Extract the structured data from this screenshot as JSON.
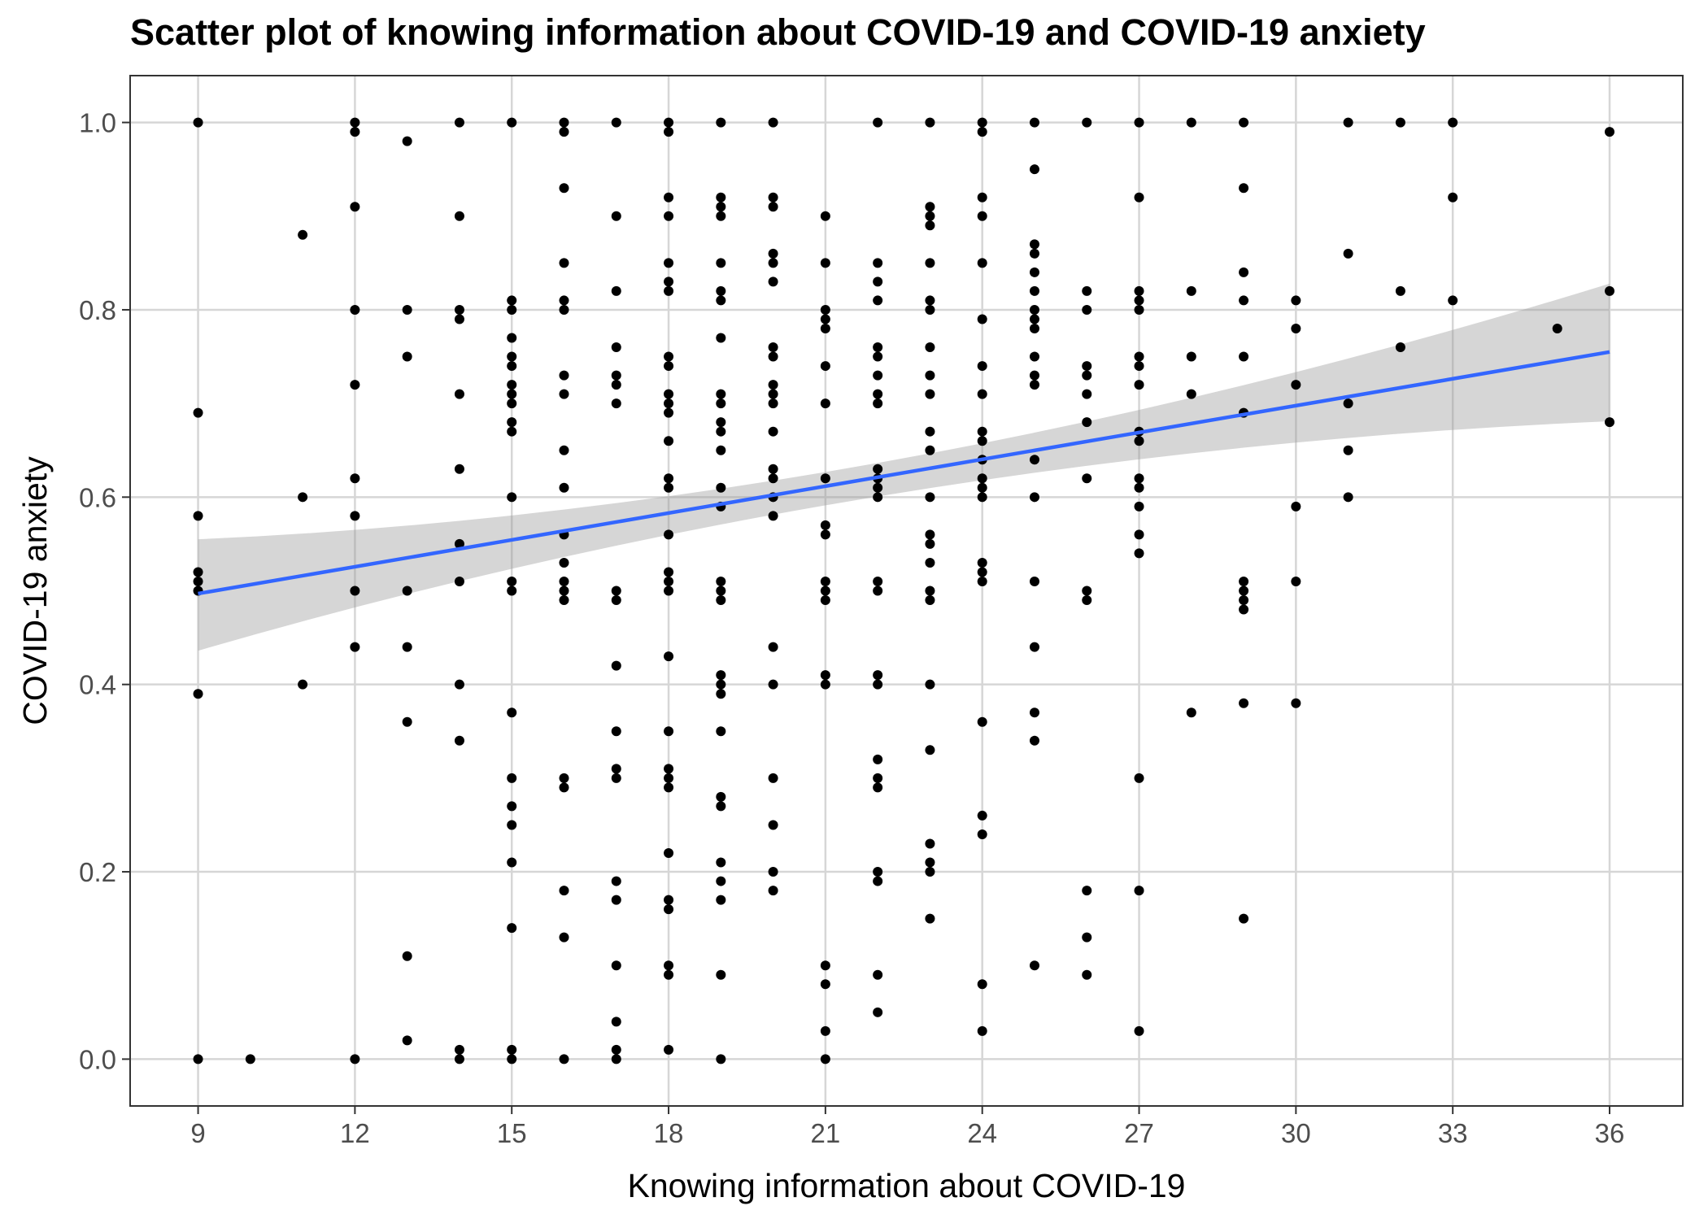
{
  "chart_data": {
    "type": "scatter",
    "title": "Scatter plot of knowing information about COVID-19 and COVID-19 anxiety",
    "xlabel": "Knowing information about COVID-19",
    "ylabel": "COVID-19 anxiety",
    "xlim": [
      7.7,
      37.4
    ],
    "ylim": [
      -0.05,
      1.05
    ],
    "x_ticks": [
      9,
      12,
      15,
      18,
      21,
      24,
      27,
      30,
      33,
      36
    ],
    "y_ticks": [
      0.0,
      0.2,
      0.4,
      0.6,
      0.8,
      1.0
    ],
    "x_tick_labels": [
      "9",
      "12",
      "15",
      "18",
      "21",
      "24",
      "27",
      "30",
      "33",
      "36"
    ],
    "y_tick_labels": [
      "0.0",
      "0.2",
      "0.4",
      "0.6",
      "0.8",
      "1.0"
    ],
    "grid": true,
    "colors": {
      "points": "#000000",
      "fit_line": "#3366ff",
      "ribbon": "#999999",
      "grid": "#d6d6d6",
      "panel_border": "#333333"
    },
    "points": [
      [
        9,
        1.0
      ],
      [
        9,
        0.69
      ],
      [
        9,
        0.58
      ],
      [
        9,
        0.52
      ],
      [
        9,
        0.51
      ],
      [
        9,
        0.5
      ],
      [
        9,
        0.39
      ],
      [
        9,
        0.0
      ],
      [
        10,
        0.0
      ],
      [
        11,
        0.88
      ],
      [
        11,
        0.6
      ],
      [
        11,
        0.4
      ],
      [
        12,
        1.0
      ],
      [
        12,
        0.99
      ],
      [
        12,
        0.91
      ],
      [
        12,
        0.8
      ],
      [
        12,
        0.72
      ],
      [
        12,
        0.62
      ],
      [
        12,
        0.58
      ],
      [
        12,
        0.5
      ],
      [
        12,
        0.44
      ],
      [
        12,
        0.0
      ],
      [
        13,
        0.98
      ],
      [
        13,
        0.8
      ],
      [
        13,
        0.75
      ],
      [
        13,
        0.5
      ],
      [
        13,
        0.44
      ],
      [
        13,
        0.36
      ],
      [
        13,
        0.11
      ],
      [
        13,
        0.02
      ],
      [
        14,
        1.0
      ],
      [
        14,
        0.9
      ],
      [
        14,
        0.8
      ],
      [
        14,
        0.79
      ],
      [
        14,
        0.71
      ],
      [
        14,
        0.63
      ],
      [
        14,
        0.55
      ],
      [
        14,
        0.51
      ],
      [
        14,
        0.4
      ],
      [
        14,
        0.34
      ],
      [
        14,
        0.01
      ],
      [
        14,
        0.0
      ],
      [
        15,
        1.0
      ],
      [
        15,
        0.81
      ],
      [
        15,
        0.8
      ],
      [
        15,
        0.77
      ],
      [
        15,
        0.75
      ],
      [
        15,
        0.74
      ],
      [
        15,
        0.72
      ],
      [
        15,
        0.71
      ],
      [
        15,
        0.7
      ],
      [
        15,
        0.68
      ],
      [
        15,
        0.67
      ],
      [
        15,
        0.6
      ],
      [
        15,
        0.51
      ],
      [
        15,
        0.5
      ],
      [
        15,
        0.37
      ],
      [
        15,
        0.3
      ],
      [
        15,
        0.27
      ],
      [
        15,
        0.25
      ],
      [
        15,
        0.21
      ],
      [
        15,
        0.14
      ],
      [
        15,
        0.01
      ],
      [
        15,
        0.0
      ],
      [
        16,
        1.0
      ],
      [
        16,
        0.99
      ],
      [
        16,
        0.93
      ],
      [
        16,
        0.85
      ],
      [
        16,
        0.81
      ],
      [
        16,
        0.8
      ],
      [
        16,
        0.73
      ],
      [
        16,
        0.71
      ],
      [
        16,
        0.65
      ],
      [
        16,
        0.61
      ],
      [
        16,
        0.56
      ],
      [
        16,
        0.53
      ],
      [
        16,
        0.51
      ],
      [
        16,
        0.5
      ],
      [
        16,
        0.49
      ],
      [
        16,
        0.3
      ],
      [
        16,
        0.29
      ],
      [
        16,
        0.18
      ],
      [
        16,
        0.13
      ],
      [
        16,
        0.0
      ],
      [
        17,
        1.0
      ],
      [
        17,
        0.9
      ],
      [
        17,
        0.82
      ],
      [
        17,
        0.76
      ],
      [
        17,
        0.73
      ],
      [
        17,
        0.72
      ],
      [
        17,
        0.7
      ],
      [
        17,
        0.5
      ],
      [
        17,
        0.49
      ],
      [
        17,
        0.42
      ],
      [
        17,
        0.35
      ],
      [
        17,
        0.31
      ],
      [
        17,
        0.3
      ],
      [
        17,
        0.19
      ],
      [
        17,
        0.17
      ],
      [
        17,
        0.1
      ],
      [
        17,
        0.04
      ],
      [
        17,
        0.01
      ],
      [
        17,
        0.0
      ],
      [
        18,
        1.0
      ],
      [
        18,
        0.99
      ],
      [
        18,
        0.92
      ],
      [
        18,
        0.9
      ],
      [
        18,
        0.85
      ],
      [
        18,
        0.83
      ],
      [
        18,
        0.82
      ],
      [
        18,
        0.75
      ],
      [
        18,
        0.74
      ],
      [
        18,
        0.71
      ],
      [
        18,
        0.7
      ],
      [
        18,
        0.69
      ],
      [
        18,
        0.66
      ],
      [
        18,
        0.62
      ],
      [
        18,
        0.61
      ],
      [
        18,
        0.56
      ],
      [
        18,
        0.52
      ],
      [
        18,
        0.51
      ],
      [
        18,
        0.5
      ],
      [
        18,
        0.43
      ],
      [
        18,
        0.35
      ],
      [
        18,
        0.31
      ],
      [
        18,
        0.3
      ],
      [
        18,
        0.29
      ],
      [
        18,
        0.22
      ],
      [
        18,
        0.17
      ],
      [
        18,
        0.16
      ],
      [
        18,
        0.1
      ],
      [
        18,
        0.09
      ],
      [
        18,
        0.01
      ],
      [
        19,
        1.0
      ],
      [
        19,
        0.92
      ],
      [
        19,
        0.91
      ],
      [
        19,
        0.9
      ],
      [
        19,
        0.85
      ],
      [
        19,
        0.82
      ],
      [
        19,
        0.81
      ],
      [
        19,
        0.77
      ],
      [
        19,
        0.71
      ],
      [
        19,
        0.7
      ],
      [
        19,
        0.68
      ],
      [
        19,
        0.67
      ],
      [
        19,
        0.65
      ],
      [
        19,
        0.61
      ],
      [
        19,
        0.59
      ],
      [
        19,
        0.51
      ],
      [
        19,
        0.5
      ],
      [
        19,
        0.49
      ],
      [
        19,
        0.41
      ],
      [
        19,
        0.4
      ],
      [
        19,
        0.39
      ],
      [
        19,
        0.35
      ],
      [
        19,
        0.28
      ],
      [
        19,
        0.27
      ],
      [
        19,
        0.21
      ],
      [
        19,
        0.19
      ],
      [
        19,
        0.17
      ],
      [
        19,
        0.09
      ],
      [
        19,
        0.0
      ],
      [
        20,
        1.0
      ],
      [
        20,
        0.92
      ],
      [
        20,
        0.91
      ],
      [
        20,
        0.86
      ],
      [
        20,
        0.85
      ],
      [
        20,
        0.83
      ],
      [
        20,
        0.76
      ],
      [
        20,
        0.75
      ],
      [
        20,
        0.72
      ],
      [
        20,
        0.71
      ],
      [
        20,
        0.7
      ],
      [
        20,
        0.67
      ],
      [
        20,
        0.63
      ],
      [
        20,
        0.62
      ],
      [
        20,
        0.6
      ],
      [
        20,
        0.58
      ],
      [
        20,
        0.44
      ],
      [
        20,
        0.4
      ],
      [
        20,
        0.3
      ],
      [
        20,
        0.25
      ],
      [
        20,
        0.2
      ],
      [
        20,
        0.18
      ],
      [
        21,
        0.9
      ],
      [
        21,
        0.85
      ],
      [
        21,
        0.8
      ],
      [
        21,
        0.79
      ],
      [
        21,
        0.78
      ],
      [
        21,
        0.74
      ],
      [
        21,
        0.7
      ],
      [
        21,
        0.62
      ],
      [
        21,
        0.57
      ],
      [
        21,
        0.56
      ],
      [
        21,
        0.51
      ],
      [
        21,
        0.5
      ],
      [
        21,
        0.49
      ],
      [
        21,
        0.41
      ],
      [
        21,
        0.4
      ],
      [
        21,
        0.1
      ],
      [
        21,
        0.08
      ],
      [
        21,
        0.03
      ],
      [
        21,
        0.0
      ],
      [
        22,
        1.0
      ],
      [
        22,
        0.85
      ],
      [
        22,
        0.83
      ],
      [
        22,
        0.81
      ],
      [
        22,
        0.76
      ],
      [
        22,
        0.75
      ],
      [
        22,
        0.73
      ],
      [
        22,
        0.71
      ],
      [
        22,
        0.7
      ],
      [
        22,
        0.63
      ],
      [
        22,
        0.62
      ],
      [
        22,
        0.61
      ],
      [
        22,
        0.6
      ],
      [
        22,
        0.51
      ],
      [
        22,
        0.5
      ],
      [
        22,
        0.41
      ],
      [
        22,
        0.4
      ],
      [
        22,
        0.32
      ],
      [
        22,
        0.3
      ],
      [
        22,
        0.29
      ],
      [
        22,
        0.2
      ],
      [
        22,
        0.19
      ],
      [
        22,
        0.09
      ],
      [
        22,
        0.05
      ],
      [
        23,
        1.0
      ],
      [
        23,
        0.91
      ],
      [
        23,
        0.9
      ],
      [
        23,
        0.89
      ],
      [
        23,
        0.85
      ],
      [
        23,
        0.81
      ],
      [
        23,
        0.8
      ],
      [
        23,
        0.76
      ],
      [
        23,
        0.73
      ],
      [
        23,
        0.71
      ],
      [
        23,
        0.67
      ],
      [
        23,
        0.65
      ],
      [
        23,
        0.6
      ],
      [
        23,
        0.56
      ],
      [
        23,
        0.55
      ],
      [
        23,
        0.53
      ],
      [
        23,
        0.5
      ],
      [
        23,
        0.49
      ],
      [
        23,
        0.4
      ],
      [
        23,
        0.33
      ],
      [
        23,
        0.23
      ],
      [
        23,
        0.21
      ],
      [
        23,
        0.2
      ],
      [
        23,
        0.15
      ],
      [
        24,
        1.0
      ],
      [
        24,
        0.99
      ],
      [
        24,
        0.92
      ],
      [
        24,
        0.9
      ],
      [
        24,
        0.85
      ],
      [
        24,
        0.79
      ],
      [
        24,
        0.74
      ],
      [
        24,
        0.71
      ],
      [
        24,
        0.67
      ],
      [
        24,
        0.66
      ],
      [
        24,
        0.64
      ],
      [
        24,
        0.62
      ],
      [
        24,
        0.61
      ],
      [
        24,
        0.6
      ],
      [
        24,
        0.53
      ],
      [
        24,
        0.52
      ],
      [
        24,
        0.51
      ],
      [
        24,
        0.36
      ],
      [
        24,
        0.26
      ],
      [
        24,
        0.24
      ],
      [
        24,
        0.08
      ],
      [
        24,
        0.03
      ],
      [
        25,
        1.0
      ],
      [
        25,
        0.95
      ],
      [
        25,
        0.87
      ],
      [
        25,
        0.86
      ],
      [
        25,
        0.84
      ],
      [
        25,
        0.82
      ],
      [
        25,
        0.8
      ],
      [
        25,
        0.79
      ],
      [
        25,
        0.78
      ],
      [
        25,
        0.75
      ],
      [
        25,
        0.73
      ],
      [
        25,
        0.72
      ],
      [
        25,
        0.64
      ],
      [
        25,
        0.6
      ],
      [
        25,
        0.51
      ],
      [
        25,
        0.44
      ],
      [
        25,
        0.37
      ],
      [
        25,
        0.34
      ],
      [
        25,
        0.1
      ],
      [
        26,
        1.0
      ],
      [
        26,
        0.82
      ],
      [
        26,
        0.8
      ],
      [
        26,
        0.74
      ],
      [
        26,
        0.73
      ],
      [
        26,
        0.71
      ],
      [
        26,
        0.68
      ],
      [
        26,
        0.62
      ],
      [
        26,
        0.5
      ],
      [
        26,
        0.49
      ],
      [
        26,
        0.18
      ],
      [
        26,
        0.13
      ],
      [
        26,
        0.09
      ],
      [
        27,
        1.0
      ],
      [
        27,
        0.92
      ],
      [
        27,
        0.82
      ],
      [
        27,
        0.81
      ],
      [
        27,
        0.8
      ],
      [
        27,
        0.75
      ],
      [
        27,
        0.74
      ],
      [
        27,
        0.72
      ],
      [
        27,
        0.67
      ],
      [
        27,
        0.66
      ],
      [
        27,
        0.62
      ],
      [
        27,
        0.61
      ],
      [
        27,
        0.59
      ],
      [
        27,
        0.56
      ],
      [
        27,
        0.54
      ],
      [
        27,
        0.3
      ],
      [
        27,
        0.18
      ],
      [
        27,
        0.03
      ],
      [
        28,
        1.0
      ],
      [
        28,
        0.82
      ],
      [
        28,
        0.75
      ],
      [
        28,
        0.71
      ],
      [
        28,
        0.37
      ],
      [
        29,
        1.0
      ],
      [
        29,
        0.93
      ],
      [
        29,
        0.84
      ],
      [
        29,
        0.81
      ],
      [
        29,
        0.75
      ],
      [
        29,
        0.69
      ],
      [
        29,
        0.51
      ],
      [
        29,
        0.5
      ],
      [
        29,
        0.49
      ],
      [
        29,
        0.48
      ],
      [
        29,
        0.38
      ],
      [
        29,
        0.15
      ],
      [
        30,
        0.81
      ],
      [
        30,
        0.78
      ],
      [
        30,
        0.72
      ],
      [
        30,
        0.59
      ],
      [
        30,
        0.51
      ],
      [
        30,
        0.38
      ],
      [
        31,
        1.0
      ],
      [
        31,
        0.86
      ],
      [
        31,
        0.7
      ],
      [
        31,
        0.65
      ],
      [
        31,
        0.6
      ],
      [
        32,
        1.0
      ],
      [
        32,
        0.82
      ],
      [
        32,
        0.76
      ],
      [
        33,
        1.0
      ],
      [
        33,
        0.92
      ],
      [
        33,
        0.81
      ],
      [
        35,
        0.78
      ],
      [
        36,
        0.99
      ],
      [
        36,
        0.82
      ],
      [
        36,
        0.68
      ]
    ],
    "fit": {
      "method": "linear",
      "x": [
        9,
        36
      ],
      "y": [
        0.497,
        0.755
      ],
      "ci_lower": [
        0.436,
        0.681
      ],
      "ci_upper": [
        0.555,
        0.828
      ],
      "ci_center": {
        "x": 22,
        "lower": 0.603,
        "upper": 0.639
      }
    }
  }
}
